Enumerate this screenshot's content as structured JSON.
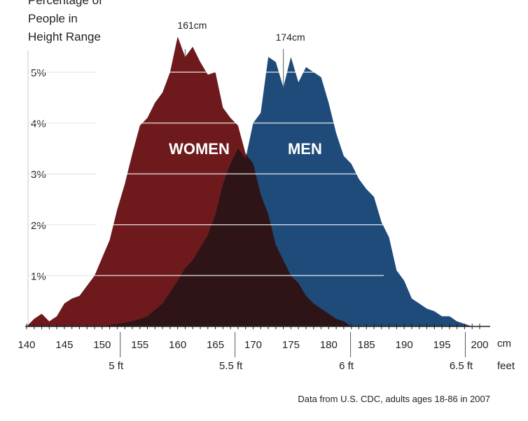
{
  "chart_data": {
    "type": "area",
    "ylabel": [
      "Percentage of",
      "People in",
      "Height Range"
    ],
    "xlim": [
      140,
      201
    ],
    "ylim": [
      0,
      5.5
    ],
    "y_ticks": [
      {
        "value": 1,
        "label": "1%"
      },
      {
        "value": 2,
        "label": "2%"
      },
      {
        "value": 3,
        "label": "3%"
      },
      {
        "value": 4,
        "label": "4%"
      },
      {
        "value": 5,
        "label": "5%"
      }
    ],
    "x_cm_ticks": [
      140,
      145,
      150,
      155,
      160,
      165,
      170,
      175,
      180,
      185,
      190,
      195,
      200
    ],
    "x_cm_unit": "cm",
    "x_feet_ticks": [
      {
        "cm": 152.4,
        "label": "5 ft"
      },
      {
        "cm": 167.6,
        "label": "5.5 ft"
      },
      {
        "cm": 182.9,
        "label": "6 ft"
      },
      {
        "cm": 198.1,
        "label": "6.5 ft"
      }
    ],
    "x_feet_unit": "feet",
    "grid": true,
    "series": [
      {
        "name": "WOMEN",
        "color": "#6e1a1d",
        "label_at": {
          "x": 161,
          "y": 3.5
        },
        "peak": {
          "x": 161,
          "label": "161cm"
        },
        "points": [
          [
            140,
            0
          ],
          [
            141,
            0.15
          ],
          [
            142,
            0.25
          ],
          [
            143,
            0.1
          ],
          [
            144,
            0.2
          ],
          [
            145,
            0.45
          ],
          [
            146,
            0.55
          ],
          [
            147,
            0.6
          ],
          [
            148,
            0.8
          ],
          [
            149,
            1.0
          ],
          [
            150,
            1.35
          ],
          [
            151,
            1.7
          ],
          [
            152,
            2.3
          ],
          [
            153,
            2.8
          ],
          [
            154,
            3.4
          ],
          [
            155,
            3.95
          ],
          [
            156,
            4.1
          ],
          [
            157,
            4.4
          ],
          [
            158,
            4.6
          ],
          [
            159,
            5.0
          ],
          [
            160,
            5.7
          ],
          [
            161,
            5.3
          ],
          [
            162,
            5.5
          ],
          [
            163,
            5.2
          ],
          [
            164,
            4.95
          ],
          [
            165,
            5.0
          ],
          [
            166,
            4.3
          ],
          [
            167,
            4.1
          ],
          [
            168,
            3.95
          ],
          [
            169,
            3.4
          ],
          [
            170,
            3.2
          ],
          [
            171,
            2.6
          ],
          [
            172,
            2.2
          ],
          [
            173,
            1.6
          ],
          [
            174,
            1.3
          ],
          [
            175,
            1.0
          ],
          [
            176,
            0.85
          ],
          [
            177,
            0.6
          ],
          [
            178,
            0.45
          ],
          [
            179,
            0.35
          ],
          [
            180,
            0.25
          ],
          [
            181,
            0.15
          ],
          [
            182,
            0.1
          ],
          [
            183,
            0
          ]
        ]
      },
      {
        "name": "MEN",
        "color": "#1f4b7a",
        "label_at": {
          "x": 175,
          "y": 3.5
        },
        "peak": {
          "x": 174,
          "label": "174cm"
        },
        "points": [
          [
            150,
            0
          ],
          [
            152,
            0.05
          ],
          [
            154,
            0.1
          ],
          [
            156,
            0.2
          ],
          [
            158,
            0.45
          ],
          [
            160,
            0.9
          ],
          [
            161,
            1.15
          ],
          [
            162,
            1.3
          ],
          [
            163,
            1.55
          ],
          [
            164,
            1.8
          ],
          [
            165,
            2.2
          ],
          [
            166,
            2.8
          ],
          [
            167,
            3.2
          ],
          [
            168,
            3.5
          ],
          [
            169,
            3.3
          ],
          [
            170,
            4.0
          ],
          [
            171,
            4.2
          ],
          [
            172,
            5.3
          ],
          [
            173,
            5.2
          ],
          [
            174,
            4.7
          ],
          [
            175,
            5.3
          ],
          [
            176,
            4.8
          ],
          [
            177,
            5.1
          ],
          [
            178,
            5.0
          ],
          [
            179,
            4.9
          ],
          [
            180,
            4.4
          ],
          [
            181,
            3.8
          ],
          [
            182,
            3.35
          ],
          [
            183,
            3.2
          ],
          [
            184,
            2.9
          ],
          [
            185,
            2.7
          ],
          [
            186,
            2.55
          ],
          [
            187,
            2.05
          ],
          [
            188,
            1.75
          ],
          [
            189,
            1.1
          ],
          [
            190,
            0.9
          ],
          [
            191,
            0.55
          ],
          [
            192,
            0.45
          ],
          [
            193,
            0.35
          ],
          [
            194,
            0.3
          ],
          [
            195,
            0.2
          ],
          [
            196,
            0.2
          ],
          [
            197,
            0.1
          ],
          [
            198,
            0.05
          ],
          [
            199,
            0
          ]
        ]
      }
    ],
    "overlap_color": "#2e1416",
    "source": "Data from U.S. CDC, adults ages 18-86 in 2007"
  }
}
